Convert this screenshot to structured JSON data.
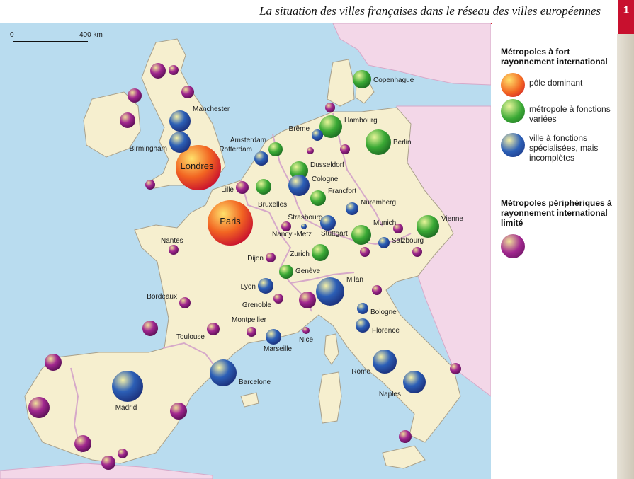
{
  "title": "La situation des villes françaises dans le réseau des villes européennes",
  "chapter_tab": "1",
  "scale": {
    "start": "0",
    "end": "400 km"
  },
  "legend": {
    "section1_title": "Métropoles à fort rayonnement international",
    "items": [
      {
        "label": "pôle dominant",
        "color": "#f26522",
        "category": "dominant"
      },
      {
        "label": "métropole à fonctions variées",
        "color": "#3aa935",
        "category": "varied"
      },
      {
        "label": "ville à fonctions spécialisées, mais incomplètes",
        "color": "#2c5fb6",
        "category": "specialized"
      }
    ],
    "section2_title": "Métropoles périphériques à rayonnement international limité",
    "section2_color": "#a1278f"
  },
  "colors": {
    "sea": "#b9dcef",
    "land_ue": "#f6efcf",
    "land_other": "#f3d7e8",
    "border": "#d6a9c9"
  },
  "cities": [
    {
      "name": "Londres",
      "category": "dominant"
    },
    {
      "name": "Paris",
      "category": "dominant"
    },
    {
      "name": "Copenhague",
      "category": "varied"
    },
    {
      "name": "Hambourg",
      "category": "varied"
    },
    {
      "name": "Berlin",
      "category": "varied"
    },
    {
      "name": "Amsterdam",
      "category": "varied"
    },
    {
      "name": "Rotterdam",
      "category": "specialized"
    },
    {
      "name": "Brême",
      "category": "specialized"
    },
    {
      "name": "Dusseldorf",
      "category": "varied"
    },
    {
      "name": "Cologne",
      "category": "specialized"
    },
    {
      "name": "Francfort",
      "category": "varied"
    },
    {
      "name": "Bruxelles",
      "category": "varied"
    },
    {
      "name": "Lille",
      "category": "peripheral"
    },
    {
      "name": "Nuremberg",
      "category": "specialized"
    },
    {
      "name": "Strasbourg",
      "category": "specialized"
    },
    {
      "name": "Stuttgart",
      "category": "specialized"
    },
    {
      "name": "Munich",
      "category": "varied"
    },
    {
      "name": "Vienne",
      "category": "varied"
    },
    {
      "name": "Salzbourg",
      "category": "specialized"
    },
    {
      "name": "Nancy -Metz",
      "category": "peripheral"
    },
    {
      "name": "Zurich",
      "category": "varied"
    },
    {
      "name": "Genève",
      "category": "varied"
    },
    {
      "name": "Dijon",
      "category": "peripheral"
    },
    {
      "name": "Lyon",
      "category": "specialized"
    },
    {
      "name": "Grenoble",
      "category": "peripheral"
    },
    {
      "name": "Milan",
      "category": "specialized"
    },
    {
      "name": "Bologne",
      "category": "specialized"
    },
    {
      "name": "Florence",
      "category": "specialized"
    },
    {
      "name": "Montpellier",
      "category": "peripheral"
    },
    {
      "name": "Marseille",
      "category": "specialized"
    },
    {
      "name": "Nice",
      "category": "peripheral"
    },
    {
      "name": "Manchester",
      "category": "specialized"
    },
    {
      "name": "Birmingham",
      "category": "specialized"
    },
    {
      "name": "Nantes",
      "category": "peripheral"
    },
    {
      "name": "Bordeaux",
      "category": "peripheral"
    },
    {
      "name": "Toulouse",
      "category": "peripheral"
    },
    {
      "name": "Barcelone",
      "category": "specialized"
    },
    {
      "name": "Madrid",
      "category": "specialized"
    },
    {
      "name": "Rome",
      "category": "specialized"
    },
    {
      "name": "Naples",
      "category": "specialized"
    }
  ]
}
